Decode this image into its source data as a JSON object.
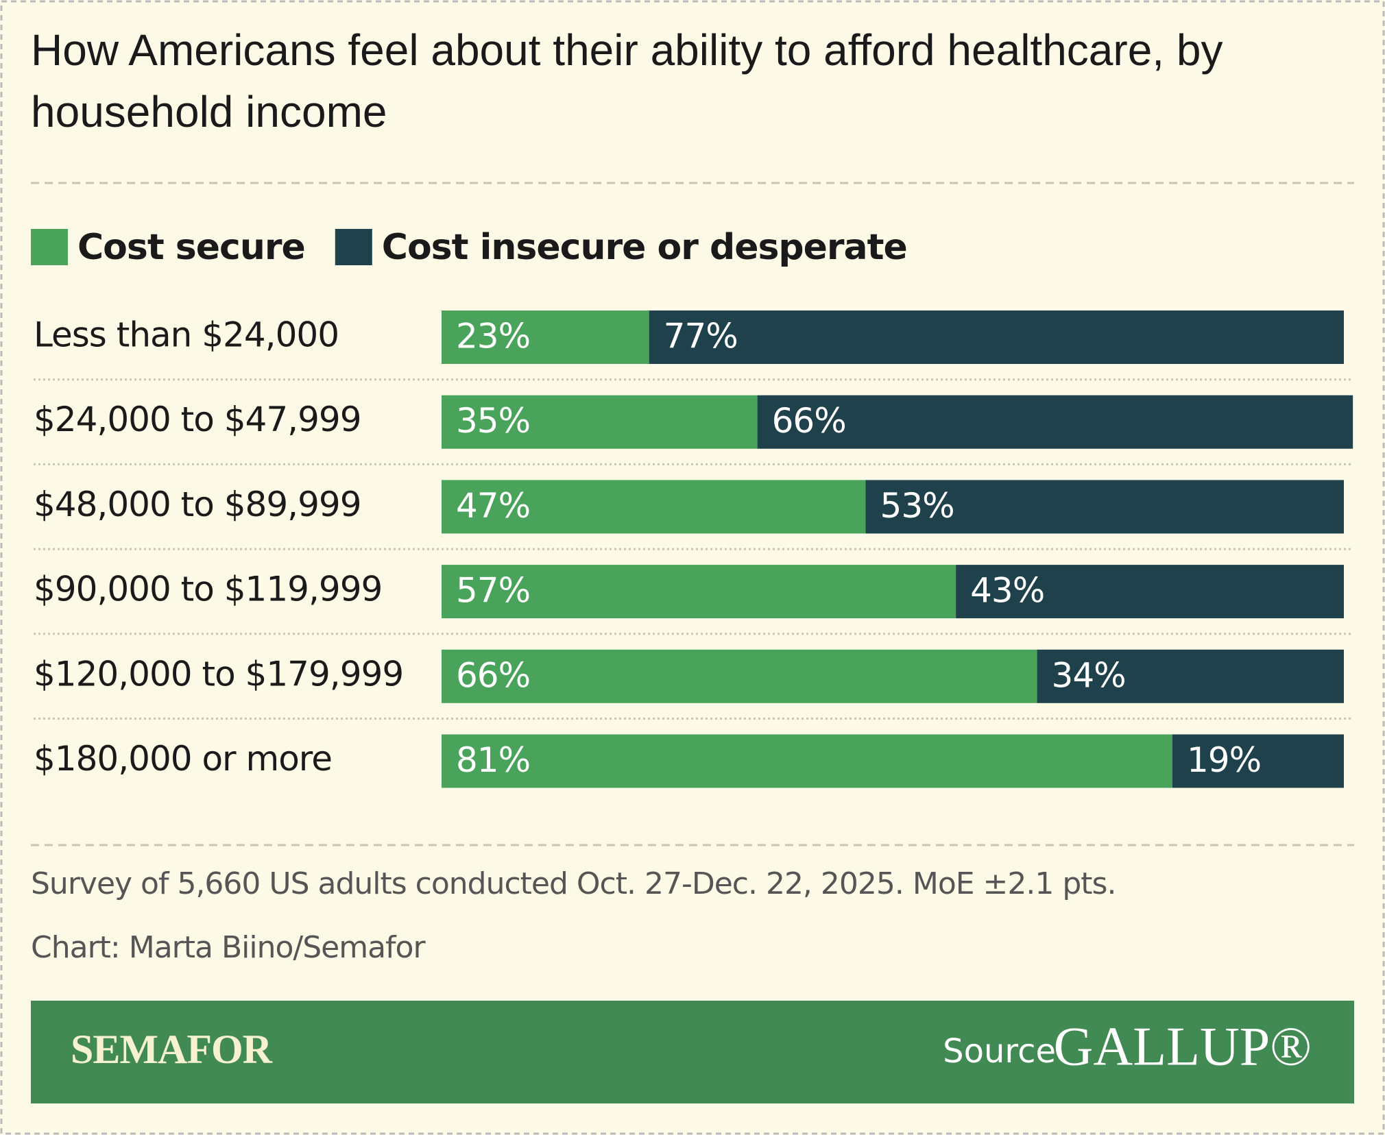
{
  "chart_data": {
    "type": "bar",
    "orientation": "horizontal",
    "stacked": true,
    "title": "How Americans feel about their ability to afford healthcare, by household income",
    "categories": [
      "Less than $24,000",
      "$24,000 to $47,999",
      "$48,000 to $89,999",
      "$90,000 to $119,999",
      "$120,000 to $179,999",
      "$180,000 or more"
    ],
    "series": [
      {
        "name": "Cost secure",
        "color": "#4aa35a",
        "values": [
          23,
          35,
          47,
          57,
          66,
          81
        ],
        "value_labels": [
          "23%",
          "35%",
          "47%",
          "57%",
          "66%",
          "81%"
        ]
      },
      {
        "name": "Cost insecure or desperate",
        "color": "#1f414c",
        "values": [
          77,
          66,
          53,
          43,
          34,
          19
        ],
        "value_labels": [
          "77%",
          "66%",
          "53%",
          "43%",
          "34%",
          "19%"
        ]
      }
    ],
    "xlim": [
      0,
      100
    ],
    "legend": "top-left",
    "notes": [
      "Survey of 5,660 US adults conducted Oct. 27-Dec. 22, 2025. MoE ±2.1 pts.",
      "Chart: Marta Biino/Semafor"
    ],
    "footer": {
      "brand": "SEMAFOR",
      "source_label": "Source",
      "source": "GALLUP®"
    }
  }
}
